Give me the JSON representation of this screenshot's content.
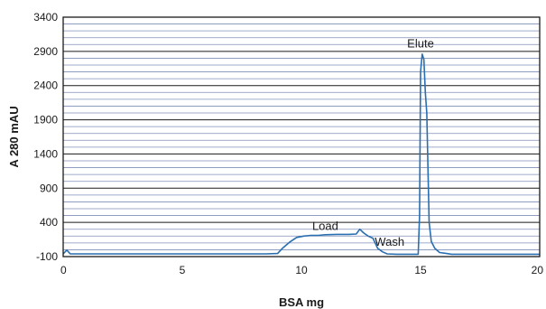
{
  "chart_data": {
    "type": "line",
    "title": "",
    "xlabel": "BSA mg",
    "ylabel": "A 280 mAU",
    "xlim": [
      0,
      20
    ],
    "ylim": [
      -100,
      3400
    ],
    "x_ticks": [
      0,
      5,
      10,
      15,
      20
    ],
    "y_ticks": [
      -100,
      400,
      900,
      1400,
      1900,
      2400,
      2900,
      3400
    ],
    "grid": {
      "major_y": true,
      "minor_y": true,
      "x": false
    },
    "colors": {
      "line": "#2a6fb0",
      "major_grid": "#1a1a1a",
      "minor_grid": "#7f8fb8",
      "axis": "#1a1a1a"
    },
    "annotations": [
      {
        "text": "Elute",
        "x": 15.0,
        "y": 2960
      },
      {
        "text": "Load",
        "x": 11.0,
        "y": 290
      },
      {
        "text": "Wash",
        "x": 13.7,
        "y": 60
      }
    ],
    "series": [
      {
        "values": [
          [
            0,
            -60
          ],
          [
            0.15,
            -5
          ],
          [
            0.3,
            -60
          ],
          [
            1,
            -60
          ],
          [
            4,
            -60
          ],
          [
            7,
            -60
          ],
          [
            8.5,
            -60
          ],
          [
            9.0,
            -55
          ],
          [
            9.2,
            20
          ],
          [
            9.5,
            110
          ],
          [
            9.8,
            180
          ],
          [
            10.1,
            200
          ],
          [
            10.4,
            210
          ],
          [
            10.7,
            210
          ],
          [
            11.0,
            220
          ],
          [
            11.5,
            225
          ],
          [
            12.0,
            225
          ],
          [
            12.3,
            230
          ],
          [
            12.45,
            300
          ],
          [
            12.6,
            250
          ],
          [
            12.8,
            200
          ],
          [
            13.0,
            170
          ],
          [
            13.2,
            20
          ],
          [
            13.4,
            -30
          ],
          [
            13.6,
            -60
          ],
          [
            14.0,
            -65
          ],
          [
            14.5,
            -65
          ],
          [
            14.9,
            -65
          ],
          [
            14.96,
            500
          ],
          [
            15.0,
            2600
          ],
          [
            15.07,
            2860
          ],
          [
            15.14,
            2780
          ],
          [
            15.2,
            2300
          ],
          [
            15.26,
            2000
          ],
          [
            15.36,
            400
          ],
          [
            15.45,
            120
          ],
          [
            15.6,
            20
          ],
          [
            15.8,
            -40
          ],
          [
            16.1,
            -55
          ],
          [
            16.3,
            -65
          ],
          [
            17,
            -65
          ],
          [
            18,
            -65
          ],
          [
            19,
            -65
          ],
          [
            20,
            -65
          ]
        ]
      }
    ]
  }
}
